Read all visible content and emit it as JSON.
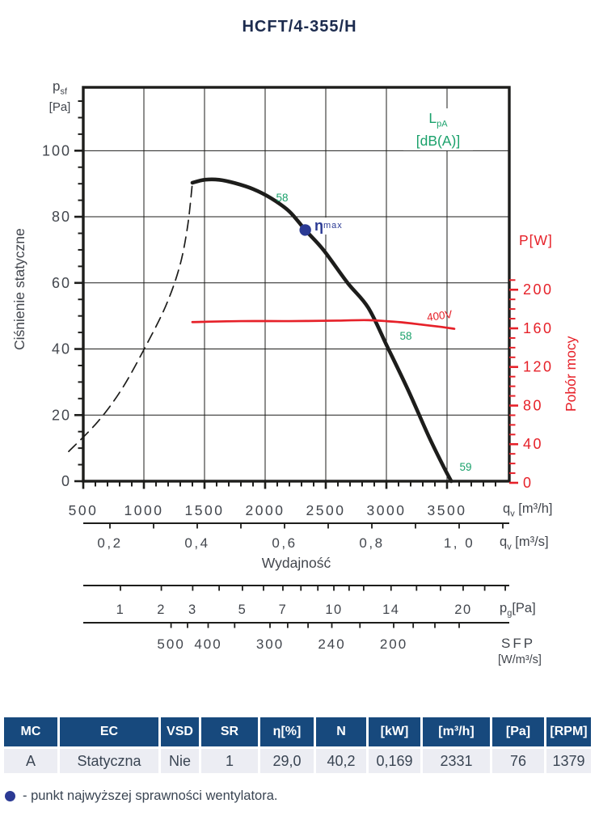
{
  "title": "HCFT/4-355/H",
  "colors": {
    "curve_black": "#1d1d1b",
    "accent_red": "#e62129",
    "accent_green": "#1aa16b",
    "point_blue": "#2b3a94",
    "table_header_bg": "#17497d",
    "table_row_bg": "#ecedf3",
    "text": "#42464d"
  },
  "chart_data": {
    "type": "line",
    "title": "HCFT/4-355/H",
    "x_axis_primary": {
      "label_base": "q",
      "label_sub": "v",
      "label_unit": "[m³/h]",
      "ticks": [
        500,
        1000,
        1500,
        2000,
        2500,
        3000,
        3500
      ],
      "minor_step": 100,
      "range": [
        500,
        4013
      ]
    },
    "x_axis_secondary": {
      "label_base": "q",
      "label_sub": "v",
      "label_unit": "[m³/s]",
      "tick_labels": [
        "0,2",
        "0,4",
        "0,6",
        "0,8",
        "1, 0"
      ],
      "tick_values": [
        0.2,
        0.4,
        0.6,
        0.8,
        1.0
      ],
      "minor_step": 0.1,
      "minor_range": [
        0.2,
        1.1
      ]
    },
    "xlabel": "Wydajność",
    "y_axis_left": {
      "label_base": "p",
      "label_sub": "sf",
      "label_unit": "[Pa]",
      "axis_title": "Ciśnienie statyczne",
      "ticks": [
        0,
        20,
        40,
        60,
        80,
        100
      ],
      "minor_step": 5,
      "range": [
        0,
        119
      ]
    },
    "y_axis_right": {
      "label": "P[W]",
      "axis_title": "Pobór mocy",
      "ticks": [
        0,
        40,
        80,
        120,
        160,
        200
      ],
      "minor_step": 10,
      "range": [
        0,
        212
      ]
    },
    "pg_axis": {
      "label_base": "p",
      "label_sub": "g",
      "label_unit": "[Pa]",
      "tick_labels": [
        1,
        2,
        3,
        5,
        7,
        10,
        14,
        20
      ],
      "ticks": [
        1,
        2,
        3,
        4,
        5,
        6,
        7,
        8,
        9,
        10,
        11,
        12,
        14,
        16,
        18,
        20,
        22,
        24
      ]
    },
    "sfp_axis": {
      "label": "SFP",
      "unit": "[W/m³/s]",
      "tick_labels": [
        500,
        400,
        300,
        240,
        200
      ],
      "ticks": [
        500,
        450,
        400,
        350,
        300,
        280,
        260,
        240,
        220,
        200,
        190,
        180,
        170
      ]
    },
    "series": [
      {
        "name": "static-pressure-curve",
        "style": "solid",
        "color": "#1d1d1b",
        "width": 4.6,
        "axis": "left",
        "points": [
          [
            1400,
            90.3
          ],
          [
            1500,
            91.2
          ],
          [
            1620,
            91.2
          ],
          [
            1750,
            90.2
          ],
          [
            1900,
            88.4
          ],
          [
            2050,
            85.6
          ],
          [
            2200,
            81.6
          ],
          [
            2331,
            76
          ],
          [
            2480,
            70
          ],
          [
            2680,
            60
          ],
          [
            2850,
            52.5
          ],
          [
            3010,
            40.5
          ],
          [
            3180,
            27.5
          ],
          [
            3350,
            13.5
          ],
          [
            3470,
            4.5
          ],
          [
            3535,
            0
          ]
        ]
      },
      {
        "name": "unstable-region-boundary",
        "style": "dashed",
        "color": "#1d1d1b",
        "width": 1.7,
        "axis": "left",
        "points": [
          [
            380,
            9
          ],
          [
            620,
            18
          ],
          [
            820,
            28
          ],
          [
            1010,
            40.5
          ],
          [
            1180,
            53
          ],
          [
            1295,
            65
          ],
          [
            1360,
            77
          ],
          [
            1398,
            89.5
          ]
        ]
      },
      {
        "name": "power-curve-400V",
        "style": "solid",
        "color": "#e62129",
        "width": 2.7,
        "axis": "right",
        "label": "400V",
        "points": [
          [
            1400,
            166.5
          ],
          [
            1800,
            167.5
          ],
          [
            2200,
            167.5
          ],
          [
            2600,
            168
          ],
          [
            2850,
            168.5
          ],
          [
            3100,
            166.5
          ],
          [
            3280,
            164
          ],
          [
            3450,
            161.5
          ],
          [
            3560,
            159.5
          ]
        ]
      }
    ],
    "sound_levels": {
      "legend_base": "L",
      "legend_sub": "pA",
      "legend_unit": "[dB(A)]",
      "labels": [
        {
          "text": "58",
          "q": 2130,
          "p": 85.5
        },
        {
          "text": "58",
          "q": 3155,
          "p": 43.5
        },
        {
          "text": "59",
          "q": 3650,
          "p": 3.8
        }
      ]
    },
    "efficiency_point": {
      "q": 2331,
      "p": 76,
      "label": "η",
      "label_sub": "max"
    }
  },
  "table": {
    "headers": [
      "MC",
      "EC",
      "VSD",
      "SR",
      "η[%]",
      "N",
      "[kW]",
      "[m³/h]",
      "[Pa]",
      "[RPM]"
    ],
    "row": [
      "A",
      "Statyczna",
      "Nie",
      "1",
      "29,0",
      "40,2",
      "0,169",
      "2331",
      "76",
      "1379"
    ]
  },
  "note": "- punkt najwyższej sprawności wentylatora."
}
